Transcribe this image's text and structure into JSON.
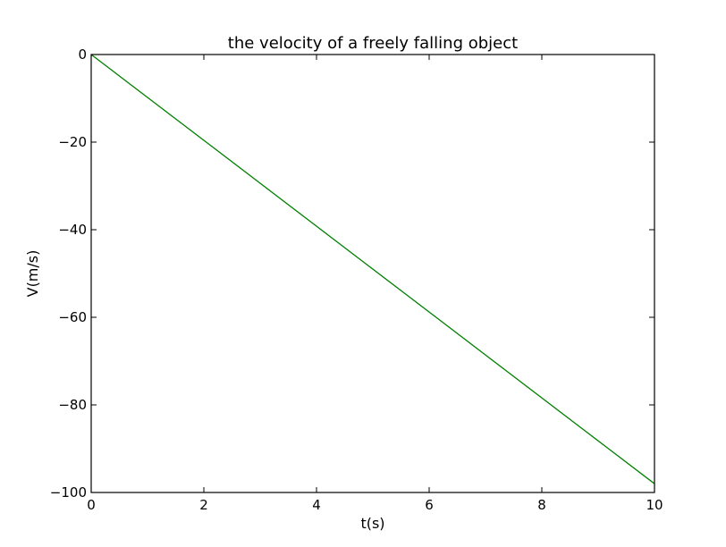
{
  "chart_data": {
    "type": "line",
    "title": "the velocity of a freely falling object",
    "xlabel": "t(s)",
    "ylabel": "V(m/s)",
    "xlim": [
      0,
      10
    ],
    "ylim": [
      -100,
      0
    ],
    "xticks": [
      0,
      2,
      4,
      6,
      8,
      10
    ],
    "yticks": [
      0,
      -20,
      -40,
      -60,
      -80,
      -100
    ],
    "xtick_labels": [
      "0",
      "2",
      "4",
      "6",
      "8",
      "10"
    ],
    "ytick_labels": [
      "0",
      "−20",
      "−40",
      "−60",
      "−80",
      "−100"
    ],
    "grid": false,
    "series": [
      {
        "color": "#008000",
        "x": [
          0,
          10
        ],
        "y": [
          0,
          -98
        ]
      }
    ]
  }
}
